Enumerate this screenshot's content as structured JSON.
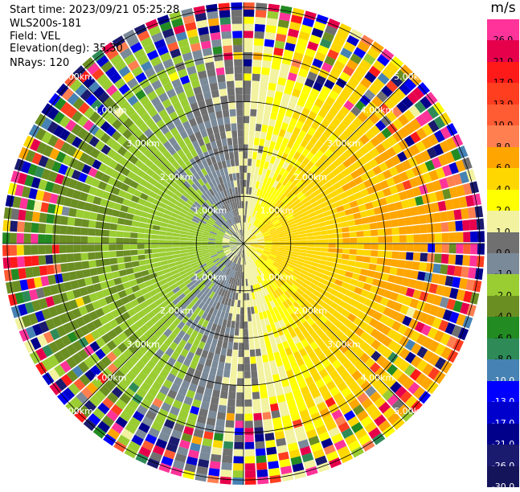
{
  "header": {
    "start_time": "Start time: 2023/09/21 05:25:28",
    "instrument": "WLS200s-181",
    "field": "Field: VEL",
    "elevation": "Elevation(deg): 35.30",
    "nrays": "NRays: 120"
  },
  "colorbar": {
    "unit": "m/s",
    "labels": [
      "26.0",
      "21.0",
      "17.0",
      "13.0",
      "10.0",
      "8.0",
      "6.0",
      "4.0",
      "2.0",
      "1.0",
      "0.0",
      "-1.0",
      "-2.0",
      "-4.0",
      "-6.0",
      "-8.0",
      "-10.0",
      "-13.0",
      "-17.0",
      "-21.0",
      "-26.0",
      "-30.0"
    ],
    "colors": [
      "#ff3399",
      "#e6004c",
      "#ff1a1a",
      "#ff3d1f",
      "#ff5c33",
      "#ff7f50",
      "#ffa500",
      "#ffd700",
      "#ffff00",
      "#f2f2a0",
      "#707070",
      "#7a8a99",
      "#9acd32",
      "#6b8e23",
      "#228b22",
      "#2e8b57",
      "#4682b4",
      "#0000ff",
      "#0000cd",
      "#00008b",
      "#1a1a6e",
      "#14145a"
    ]
  },
  "chart_data": {
    "type": "heatmap",
    "projection": "polar-ppi",
    "field": "VEL",
    "unit": "m/s",
    "nrays": 120,
    "elevation_deg": 35.3,
    "range_rings_km": [
      1,
      2,
      3,
      4,
      5
    ],
    "ring_labels": [
      "1.00km",
      "2.00km",
      "3.00km",
      "4.00km",
      "5.00km"
    ],
    "value_range": [
      -30.0,
      26.0
    ],
    "colors": {
      "grid": "#000000",
      "separator": "#ffffff"
    }
  }
}
